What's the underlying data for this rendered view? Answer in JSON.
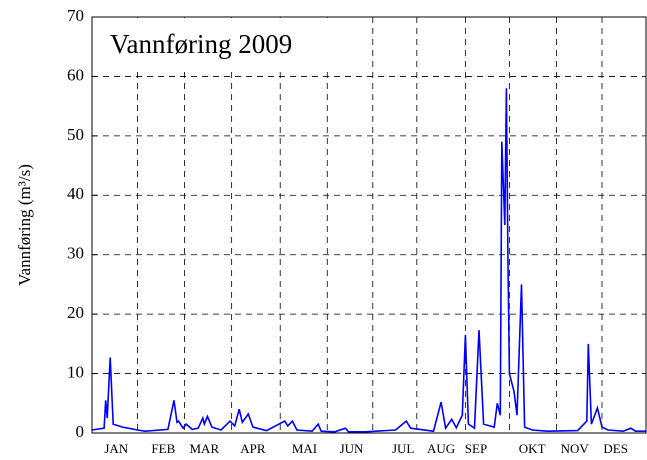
{
  "chart_data": {
    "type": "line",
    "title": "Vannføring 2009",
    "ylabel": "Vannføring (m³/s)",
    "color": "#0000ff",
    "grid": true,
    "x": [
      0,
      8,
      9,
      10,
      12,
      14,
      20,
      30,
      35,
      50,
      54,
      56,
      57,
      60,
      62,
      66,
      70,
      73,
      74,
      76,
      79,
      85,
      91,
      94,
      97,
      99,
      103,
      106,
      115,
      127,
      129,
      132,
      135,
      145,
      149,
      151,
      160,
      167,
      169,
      180,
      200,
      207,
      210,
      225,
      230,
      233,
      237,
      240,
      244,
      246,
      248,
      252,
      255,
      258,
      265,
      267,
      269,
      270,
      272,
      273,
      274,
      275,
      278,
      280,
      283,
      285,
      290,
      300,
      320,
      326,
      327,
      329,
      333,
      336,
      340,
      350,
      355,
      358,
      365
    ],
    "values": [
      0.5,
      0.8,
      5.5,
      2.5,
      12.7,
      1.5,
      1.0,
      0.5,
      0.3,
      0.6,
      5.5,
      1.8,
      2.0,
      0.8,
      1.5,
      0.6,
      0.8,
      2.5,
      1.5,
      2.8,
      1.0,
      0.5,
      2.0,
      1.2,
      4.0,
      1.8,
      3.2,
      1.0,
      0.4,
      2.0,
      1.2,
      2.0,
      0.5,
      0.3,
      1.5,
      0.3,
      0.2,
      0.8,
      0.2,
      0.2,
      0.5,
      2.0,
      0.8,
      0.3,
      5.2,
      0.8,
      2.3,
      0.9,
      3.0,
      16.5,
      1.5,
      0.8,
      17.3,
      1.5,
      1.0,
      5.0,
      3.0,
      49.0,
      35.0,
      58.0,
      30.0,
      10.0,
      7.0,
      3.0,
      25.0,
      1.0,
      0.5,
      0.3,
      0.4,
      2.0,
      15.0,
      1.5,
      4.2,
      1.0,
      0.5,
      0.3,
      0.8,
      0.3,
      0.3
    ],
    "xlim": [
      0,
      365
    ],
    "ylim": [
      0,
      70
    ],
    "yticks": [
      0,
      10,
      20,
      30,
      40,
      50,
      60,
      70
    ],
    "xticks": [
      {
        "value": 16,
        "label": "JAN"
      },
      {
        "value": 47,
        "label": "FEB"
      },
      {
        "value": 74,
        "label": "MAR"
      },
      {
        "value": 106,
        "label": "APR"
      },
      {
        "value": 140,
        "label": "MAI"
      },
      {
        "value": 171,
        "label": "JUN"
      },
      {
        "value": 205,
        "label": "JUL"
      },
      {
        "value": 230,
        "label": "AUG"
      },
      {
        "value": 253,
        "label": "SEP"
      },
      {
        "value": 290,
        "label": "OKT"
      },
      {
        "value": 318,
        "label": "NOV"
      },
      {
        "value": 345,
        "label": "DES"
      }
    ],
    "xgrid": [
      30,
      61,
      92,
      124,
      155,
      185,
      214,
      246,
      275,
      306,
      336
    ]
  }
}
